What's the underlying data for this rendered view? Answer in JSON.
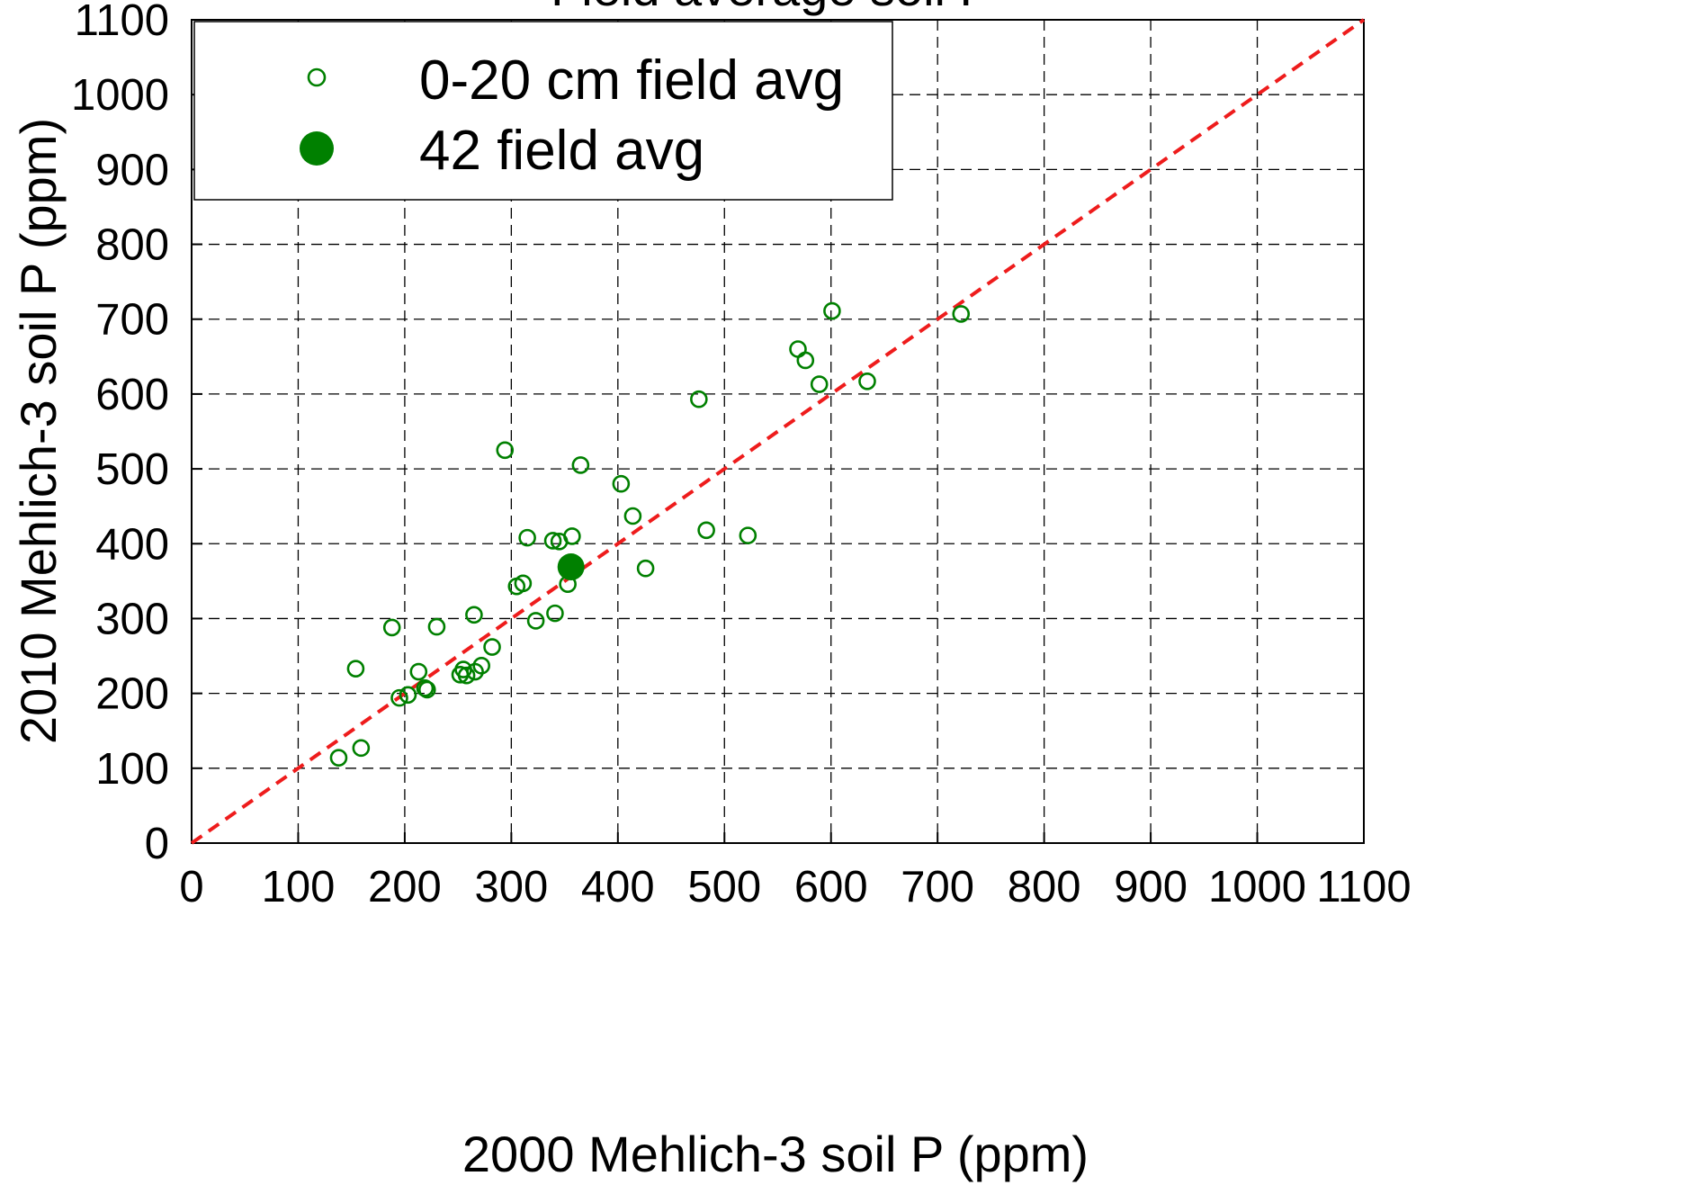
{
  "chart_data": {
    "type": "scatter",
    "title": "Field average soil P",
    "xlabel": "2000 Mehlich-3 soil P (ppm)",
    "ylabel": "2010 Mehlich-3 soil P (ppm)",
    "xlim": [
      0,
      1100
    ],
    "ylim": [
      0,
      1100
    ],
    "xticks": [
      "0",
      "100",
      "200",
      "300",
      "400",
      "500",
      "600",
      "700",
      "800",
      "900",
      "1000",
      "1100"
    ],
    "yticks": [
      "0",
      "100",
      "200",
      "300",
      "400",
      "500",
      "600",
      "700",
      "800",
      "900",
      "1000",
      "1100"
    ],
    "grid": true,
    "legend_position": "top-left",
    "reference_line": {
      "type": "1:1",
      "style": "dashed",
      "color": "#ee1c1c"
    },
    "series": [
      {
        "name": "0-20 cm field avg",
        "marker": "open-circle",
        "color": "#008000",
        "points": [
          [
            138,
            114
          ],
          [
            159,
            127
          ],
          [
            154,
            233
          ],
          [
            188,
            288
          ],
          [
            195,
            194
          ],
          [
            203,
            198
          ],
          [
            213,
            229
          ],
          [
            219,
            207
          ],
          [
            221,
            205
          ],
          [
            230,
            289
          ],
          [
            252,
            225
          ],
          [
            255,
            232
          ],
          [
            258,
            224
          ],
          [
            265,
            305
          ],
          [
            266,
            229
          ],
          [
            272,
            237
          ],
          [
            282,
            262
          ],
          [
            294,
            525
          ],
          [
            305,
            343
          ],
          [
            311,
            347
          ],
          [
            315,
            408
          ],
          [
            323,
            297
          ],
          [
            339,
            404
          ],
          [
            341,
            307
          ],
          [
            345,
            403
          ],
          [
            353,
            346
          ],
          [
            357,
            410
          ],
          [
            365,
            505
          ],
          [
            403,
            480
          ],
          [
            414,
            437
          ],
          [
            426,
            367
          ],
          [
            476,
            593
          ],
          [
            483,
            418
          ],
          [
            522,
            411
          ],
          [
            569,
            660
          ],
          [
            576,
            645
          ],
          [
            589,
            613
          ],
          [
            601,
            711
          ],
          [
            634,
            617
          ],
          [
            722,
            707
          ]
        ]
      },
      {
        "name": "42 field avg",
        "marker": "filled-circle",
        "color": "#008000",
        "points": [
          [
            356,
            369
          ]
        ]
      }
    ]
  }
}
